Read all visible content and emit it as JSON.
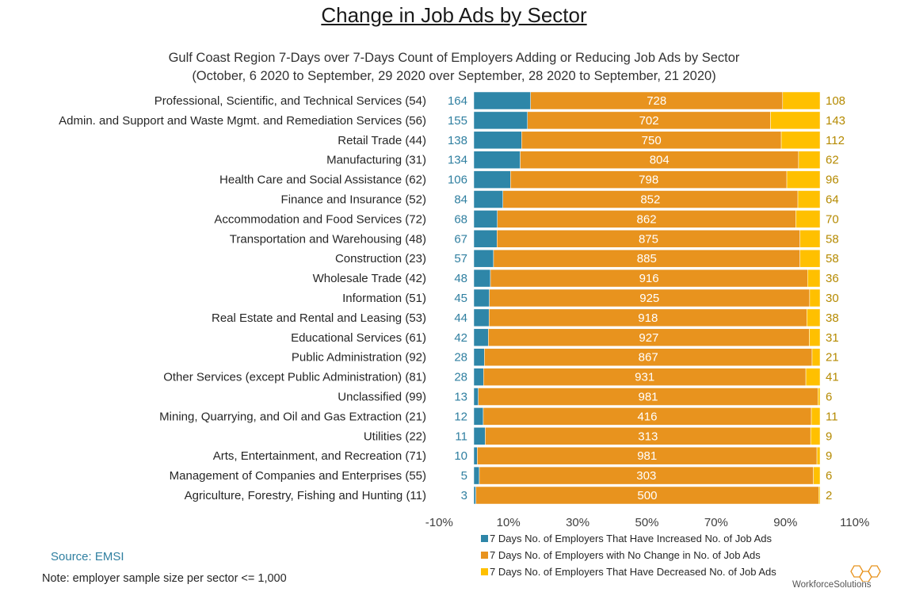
{
  "header": {
    "title": "Change in Job Ads by Sector",
    "subtitle_line1": "Gulf Coast Region 7-Days over 7-Days Count of Employers Adding or Reducing Job Ads by Sector",
    "subtitle_line2": "(October, 6 2020 to September, 29 2020 over September, 28 2020 to September, 21 2020)"
  },
  "colors": {
    "increased": "#2e86a8",
    "no_change": "#e8931e",
    "decreased": "#ffc000",
    "increased_text": "#2f7fa0",
    "decreased_text": "#b58a00"
  },
  "chart_data": {
    "type": "bar",
    "orientation": "horizontal",
    "stacked": "percent",
    "categories": [
      "Professional, Scientific, and Technical Services (54)",
      "Admin. and Support and Waste Mgmt. and Remediation Services (56)",
      "Retail Trade (44)",
      "Manufacturing (31)",
      "Health Care and Social Assistance (62)",
      "Finance and Insurance (52)",
      "Accommodation and Food Services (72)",
      "Transportation and Warehousing (48)",
      "Construction (23)",
      "Wholesale Trade (42)",
      "Information (51)",
      "Real Estate and Rental and Leasing (53)",
      "Educational Services (61)",
      "Public Administration (92)",
      "Other Services (except Public Administration) (81)",
      "Unclassified (99)",
      "Mining, Quarrying, and Oil and Gas Extraction (21)",
      "Utilities (22)",
      "Arts, Entertainment, and Recreation (71)",
      "Management of Companies and Enterprises (55)",
      "Agriculture, Forestry, Fishing and Hunting (11)"
    ],
    "series": [
      {
        "name": "7 Days No. of Employers That Have Increased No. of Job Ads",
        "values": [
          164,
          155,
          138,
          134,
          106,
          84,
          68,
          67,
          57,
          48,
          45,
          44,
          42,
          28,
          28,
          13,
          12,
          11,
          10,
          5,
          3
        ]
      },
      {
        "name": "7 Days No. of Employers with No Change in No. of Job Ads",
        "values": [
          728,
          702,
          750,
          804,
          798,
          852,
          862,
          875,
          885,
          916,
          925,
          918,
          927,
          867,
          931,
          981,
          416,
          313,
          981,
          303,
          500
        ]
      },
      {
        "name": "7 Days No. of Employers That Have Decreased No. of Job Ads",
        "values": [
          108,
          143,
          112,
          62,
          96,
          64,
          70,
          58,
          58,
          36,
          30,
          38,
          31,
          21,
          41,
          6,
          11,
          9,
          9,
          6,
          2
        ]
      }
    ],
    "x_ticks": [
      "-10%",
      "10%",
      "30%",
      "50%",
      "70%",
      "90%",
      "110%"
    ],
    "xlim": [
      -10,
      110
    ],
    "grid": false,
    "legend_position": "bottom-right"
  },
  "footer": {
    "source": "Source: EMSI",
    "note": "Note: employer sample size per sector <= 1,000",
    "logo_text": "WorkforceSolutions"
  }
}
